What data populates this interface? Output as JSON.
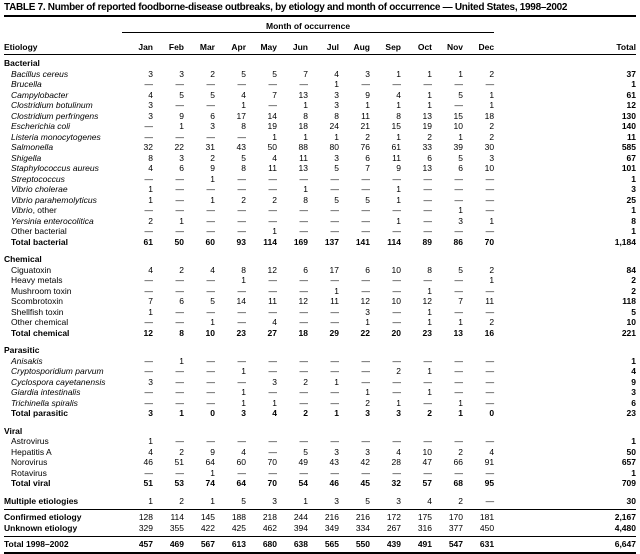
{
  "title": "TABLE 7. Number of reported foodborne-disease outbreaks, by etiology and month of occurrence — United States, 1998–2002",
  "columns": {
    "etiology": "Etiology",
    "group": "Month of occurrence",
    "months": [
      "Jan",
      "Feb",
      "Mar",
      "Apr",
      "May",
      "Jun",
      "Jul",
      "Aug",
      "Sep",
      "Oct",
      "Nov",
      "Dec"
    ],
    "total": "Total"
  },
  "table": {
    "rows": [
      {
        "section": "Bacterial"
      },
      {
        "label": "Bacillus cereus",
        "italic": true,
        "values": [
          "3",
          "3",
          "2",
          "5",
          "5",
          "7",
          "4",
          "3",
          "1",
          "1",
          "1",
          "2",
          "37"
        ]
      },
      {
        "label": "Brucella",
        "italic": true,
        "values": [
          "—",
          "—",
          "—",
          "—",
          "—",
          "—",
          "1",
          "—",
          "—",
          "—",
          "—",
          "—",
          "1"
        ]
      },
      {
        "label": "Campylobacter",
        "italic": true,
        "values": [
          "4",
          "5",
          "5",
          "4",
          "7",
          "13",
          "3",
          "9",
          "4",
          "1",
          "5",
          "1",
          "61"
        ]
      },
      {
        "label": "Clostridium botulinum",
        "italic": true,
        "values": [
          "3",
          "—",
          "—",
          "1",
          "—",
          "1",
          "3",
          "1",
          "1",
          "1",
          "—",
          "1",
          "12"
        ]
      },
      {
        "label": "Clostridium perfringens",
        "italic": true,
        "values": [
          "3",
          "9",
          "6",
          "17",
          "14",
          "8",
          "8",
          "11",
          "8",
          "13",
          "15",
          "18",
          "130"
        ]
      },
      {
        "label": "Escherichia coli",
        "italic": true,
        "values": [
          "—",
          "1",
          "3",
          "8",
          "19",
          "18",
          "24",
          "21",
          "15",
          "19",
          "10",
          "2",
          "140"
        ]
      },
      {
        "label": "Listeria monocytogenes",
        "italic": true,
        "values": [
          "—",
          "—",
          "—",
          "—",
          "1",
          "1",
          "1",
          "2",
          "1",
          "2",
          "1",
          "2",
          "11"
        ]
      },
      {
        "label": "Salmonella",
        "italic": true,
        "values": [
          "32",
          "22",
          "31",
          "43",
          "50",
          "88",
          "80",
          "76",
          "61",
          "33",
          "39",
          "30",
          "585"
        ]
      },
      {
        "label": "Shigella",
        "italic": true,
        "values": [
          "8",
          "3",
          "2",
          "5",
          "4",
          "11",
          "3",
          "6",
          "11",
          "6",
          "5",
          "3",
          "67"
        ]
      },
      {
        "label": "Staphylococcus aureus",
        "italic": true,
        "values": [
          "4",
          "6",
          "9",
          "8",
          "11",
          "13",
          "5",
          "7",
          "9",
          "13",
          "6",
          "10",
          "101"
        ]
      },
      {
        "label": "Streptococcus",
        "italic": true,
        "values": [
          "—",
          "—",
          "1",
          "—",
          "—",
          "—",
          "—",
          "—",
          "—",
          "—",
          "—",
          "—",
          "1"
        ]
      },
      {
        "label": "Vibrio cholerae",
        "italic": true,
        "values": [
          "1",
          "—",
          "—",
          "—",
          "—",
          "1",
          "—",
          "—",
          "1",
          "—",
          "—",
          "—",
          "3"
        ]
      },
      {
        "label": "Vibrio parahemolyticus",
        "italic": true,
        "values": [
          "1",
          "—",
          "1",
          "2",
          "2",
          "8",
          "5",
          "5",
          "1",
          "—",
          "—",
          "—",
          "25"
        ]
      },
      {
        "label": "Vibrio",
        "suffix": ", other",
        "italic": true,
        "values": [
          "—",
          "—",
          "—",
          "—",
          "—",
          "—",
          "—",
          "—",
          "—",
          "—",
          "1",
          "—",
          "1"
        ]
      },
      {
        "label": "Yersinia enterocolitica",
        "italic": true,
        "values": [
          "2",
          "1",
          "—",
          "—",
          "—",
          "—",
          "—",
          "—",
          "1",
          "—",
          "3",
          "1",
          "8"
        ]
      },
      {
        "label": "Other bacterial",
        "values": [
          "—",
          "—",
          "—",
          "—",
          "1",
          "—",
          "—",
          "—",
          "—",
          "—",
          "—",
          "—",
          "1"
        ]
      },
      {
        "label": "Total bacterial",
        "bold": true,
        "boldvals": true,
        "values": [
          "61",
          "50",
          "60",
          "93",
          "114",
          "169",
          "137",
          "141",
          "114",
          "89",
          "86",
          "70",
          "1,184"
        ]
      },
      {
        "section": "Chemical",
        "gap": true
      },
      {
        "label": "Ciguatoxin",
        "values": [
          "4",
          "2",
          "4",
          "8",
          "12",
          "6",
          "17",
          "6",
          "10",
          "8",
          "5",
          "2",
          "84"
        ]
      },
      {
        "label": "Heavy metals",
        "values": [
          "—",
          "—",
          "—",
          "1",
          "—",
          "—",
          "—",
          "—",
          "—",
          "—",
          "—",
          "1",
          "2"
        ]
      },
      {
        "label": "Mushroom toxin",
        "values": [
          "—",
          "—",
          "—",
          "—",
          "—",
          "—",
          "1",
          "—",
          "—",
          "1",
          "—",
          "—",
          "2"
        ]
      },
      {
        "label": "Scombrotoxin",
        "values": [
          "7",
          "6",
          "5",
          "14",
          "11",
          "12",
          "11",
          "12",
          "10",
          "12",
          "7",
          "11",
          "118"
        ]
      },
      {
        "label": "Shellfish toxin",
        "values": [
          "1",
          "—",
          "—",
          "—",
          "—",
          "—",
          "—",
          "3",
          "—",
          "1",
          "—",
          "—",
          "5"
        ]
      },
      {
        "label": "Other chemical",
        "values": [
          "—",
          "—",
          "1",
          "—",
          "4",
          "—",
          "—",
          "1",
          "—",
          "1",
          "1",
          "2",
          "10"
        ]
      },
      {
        "label": "Total chemical",
        "bold": true,
        "boldvals": true,
        "values": [
          "12",
          "8",
          "10",
          "23",
          "27",
          "18",
          "29",
          "22",
          "20",
          "23",
          "13",
          "16",
          "221"
        ]
      },
      {
        "section": "Parasitic",
        "gap": true
      },
      {
        "label": "Anisakis",
        "italic": true,
        "values": [
          "—",
          "1",
          "—",
          "—",
          "—",
          "—",
          "—",
          "—",
          "—",
          "—",
          "—",
          "—",
          "1"
        ]
      },
      {
        "label": "Cryptosporidium parvum",
        "italic": true,
        "values": [
          "—",
          "—",
          "—",
          "1",
          "—",
          "—",
          "—",
          "—",
          "2",
          "1",
          "—",
          "—",
          "4"
        ]
      },
      {
        "label": "Cyclospora cayetanensis",
        "italic": true,
        "values": [
          "3",
          "—",
          "—",
          "—",
          "3",
          "2",
          "1",
          "—",
          "—",
          "—",
          "—",
          "—",
          "9"
        ]
      },
      {
        "label": "Giardia intestinalis",
        "italic": true,
        "values": [
          "—",
          "—",
          "—",
          "1",
          "—",
          "—",
          "—",
          "1",
          "—",
          "1",
          "—",
          "—",
          "3"
        ]
      },
      {
        "label": "Trichinella spiralis",
        "italic": true,
        "values": [
          "—",
          "—",
          "—",
          "1",
          "1",
          "—",
          "—",
          "2",
          "1",
          "—",
          "1",
          "—",
          "6"
        ]
      },
      {
        "label": "Total parasitic",
        "bold": true,
        "boldvals": true,
        "values": [
          "3",
          "1",
          "0",
          "3",
          "4",
          "2",
          "1",
          "3",
          "3",
          "2",
          "1",
          "0",
          "23"
        ]
      },
      {
        "section": "Viral",
        "gap": true
      },
      {
        "label": "Astrovirus",
        "values": [
          "1",
          "—",
          "—",
          "—",
          "—",
          "—",
          "—",
          "—",
          "—",
          "—",
          "—",
          "—",
          "1"
        ]
      },
      {
        "label": "Hepatitis A",
        "values": [
          "4",
          "2",
          "9",
          "4",
          "—",
          "5",
          "3",
          "3",
          "4",
          "10",
          "2",
          "4",
          "50"
        ]
      },
      {
        "label": "Norovirus",
        "values": [
          "46",
          "51",
          "64",
          "60",
          "70",
          "49",
          "43",
          "42",
          "28",
          "47",
          "66",
          "91",
          "657"
        ]
      },
      {
        "label": "Rotavirus",
        "values": [
          "—",
          "—",
          "1",
          "—",
          "—",
          "—",
          "—",
          "—",
          "—",
          "—",
          "—",
          "—",
          "1"
        ]
      },
      {
        "label": "Total viral",
        "bold": true,
        "boldvals": true,
        "values": [
          "51",
          "53",
          "74",
          "64",
          "70",
          "54",
          "46",
          "45",
          "32",
          "57",
          "68",
          "95",
          "709"
        ]
      },
      {
        "label": "Multiple etiologies",
        "bold": true,
        "flush": true,
        "gap": true,
        "padb": true,
        "values": [
          "1",
          "2",
          "1",
          "5",
          "3",
          "1",
          "3",
          "5",
          "3",
          "4",
          "2",
          "—",
          "30"
        ]
      },
      {
        "label": "Confirmed etiology",
        "bold": true,
        "flush": true,
        "rule": true,
        "values": [
          "128",
          "114",
          "145",
          "188",
          "218",
          "244",
          "216",
          "216",
          "172",
          "175",
          "170",
          "181",
          "2,167"
        ]
      },
      {
        "label": "Unknown etiology",
        "bold": true,
        "flush": true,
        "padb": true,
        "values": [
          "329",
          "355",
          "422",
          "425",
          "462",
          "394",
          "349",
          "334",
          "267",
          "316",
          "377",
          "450",
          "4,480"
        ]
      },
      {
        "label": "Total 1998–2002",
        "bold": true,
        "boldvals": true,
        "flush": true,
        "rule": true,
        "bottom": true,
        "values": [
          "457",
          "469",
          "567",
          "613",
          "680",
          "638",
          "565",
          "550",
          "439",
          "491",
          "547",
          "631",
          "6,647"
        ]
      }
    ]
  }
}
